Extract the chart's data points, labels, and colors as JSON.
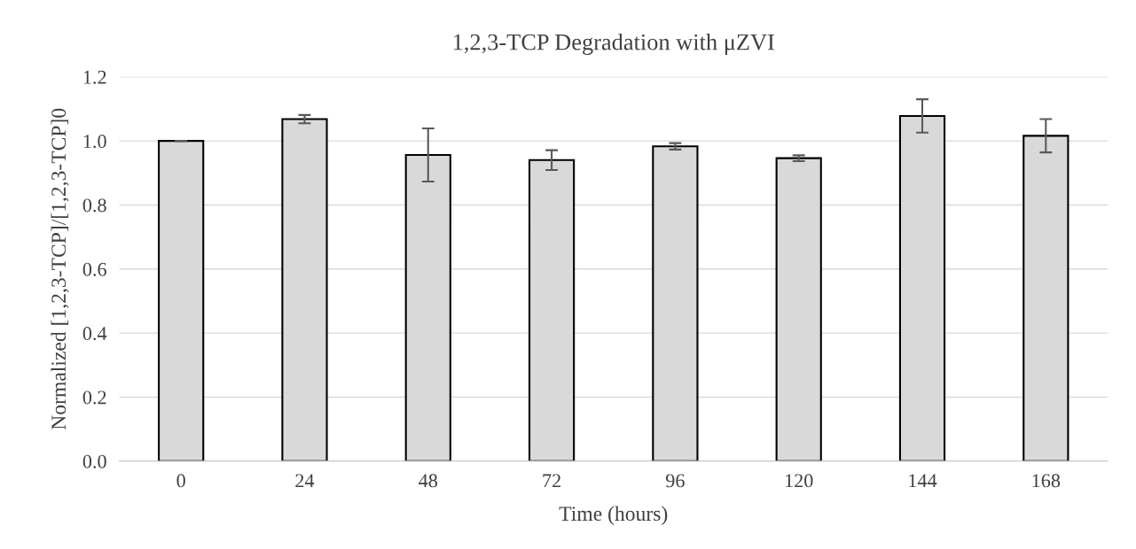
{
  "chart_data": {
    "type": "bar",
    "title": "1,2,3-TCP Degradation with μZVI",
    "xlabel": "Time (hours)",
    "ylabel": "Normalized [1,2,3-TCP]/[1,2,3-TCP]0",
    "categories": [
      "0",
      "24",
      "48",
      "72",
      "96",
      "120",
      "144",
      "168"
    ],
    "values": [
      1.0,
      1.068,
      0.956,
      0.94,
      0.983,
      0.946,
      1.078,
      1.016
    ],
    "errors": [
      0.0,
      0.013,
      0.083,
      0.031,
      0.01,
      0.009,
      0.052,
      0.052
    ],
    "color": "#d9d9d9",
    "ylim": [
      0,
      1.2
    ],
    "yticks": [
      {
        "value": 0,
        "label": "0.0"
      },
      {
        "value": 0.2,
        "label": "0.2"
      },
      {
        "value": 0.4,
        "label": "0.4"
      },
      {
        "value": 0.6,
        "label": "0.6"
      },
      {
        "value": 0.8,
        "label": "0.8"
      },
      {
        "value": 1.0,
        "label": "1.0"
      },
      {
        "value": 1.2,
        "label": "1.2"
      }
    ],
    "grid": "y",
    "legend": false
  }
}
